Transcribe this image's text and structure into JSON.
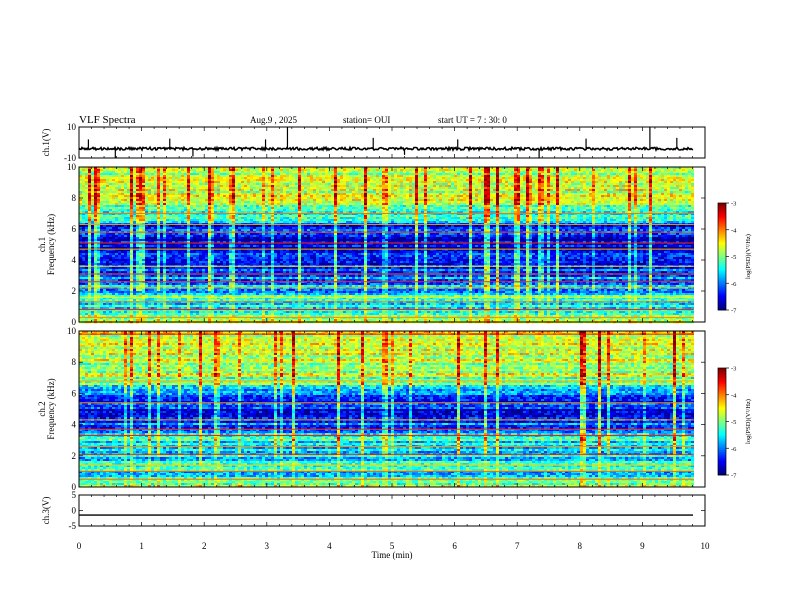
{
  "header": {
    "title": "VLF Spectra",
    "date": "Aug.9  , 2025",
    "station": "station= OUI",
    "start": "start  UT  =   7 : 30: 0"
  },
  "chart_data": [
    {
      "type": "line",
      "name": "ch1-waveform",
      "ylabel": "ch.1(V)",
      "ylim": [
        -10,
        10
      ],
      "yticks": [
        "10",
        "-10"
      ],
      "baseline": -4,
      "spikes": [
        {
          "t": 0.15,
          "v": 2
        },
        {
          "t": 0.58,
          "v": -10
        },
        {
          "t": 1.45,
          "v": 2.5
        },
        {
          "t": 1.82,
          "v": -9
        },
        {
          "t": 2.98,
          "v": 2
        },
        {
          "t": 3.33,
          "v": 10
        },
        {
          "t": 4.7,
          "v": 3
        },
        {
          "t": 5.2,
          "v": -8
        },
        {
          "t": 6.05,
          "v": 2
        },
        {
          "t": 7.35,
          "v": -10
        },
        {
          "t": 8.1,
          "v": 2.5
        },
        {
          "t": 9.12,
          "v": 10
        },
        {
          "t": 9.55,
          "v": 3
        }
      ],
      "data_end_min": 9.82
    },
    {
      "type": "heatmap",
      "name": "ch1-spectrogram",
      "ylabel": "ch.1\nFrequency  (kHz)",
      "ylim": [
        0,
        10
      ],
      "yticks": [
        "0",
        "2",
        "4",
        "6",
        "8",
        "10"
      ],
      "seed": 11,
      "band_profile": [
        {
          "f": 0.0,
          "level": -5.0
        },
        {
          "f": 0.5,
          "level": -5.2
        },
        {
          "f": 1.0,
          "level": -5.6
        },
        {
          "f": 1.5,
          "level": -5.3
        },
        {
          "f": 2.0,
          "level": -5.9
        },
        {
          "f": 2.5,
          "level": -5.7
        },
        {
          "f": 3.0,
          "level": -6.2
        },
        {
          "f": 3.5,
          "level": -6.5
        },
        {
          "f": 4.0,
          "level": -6.6
        },
        {
          "f": 4.5,
          "level": -6.7
        },
        {
          "f": 5.0,
          "level": -6.8
        },
        {
          "f": 5.5,
          "level": -6.6
        },
        {
          "f": 6.0,
          "level": -6.5
        },
        {
          "f": 6.5,
          "level": -5.8
        },
        {
          "f": 7.0,
          "level": -5.1
        },
        {
          "f": 7.5,
          "level": -4.9
        },
        {
          "f": 8.0,
          "level": -4.8
        },
        {
          "f": 8.5,
          "level": -4.7
        },
        {
          "f": 9.0,
          "level": -4.7
        },
        {
          "f": 9.5,
          "level": -4.8
        },
        {
          "f": 10.0,
          "level": -4.9
        }
      ],
      "tones_khz": [
        0.3,
        0.8,
        1.3,
        1.6,
        2.2,
        2.6,
        3.1,
        3.6,
        4.7,
        5.1,
        5.8,
        6.3,
        7.0
      ],
      "data_end_min": 9.82,
      "colorbar": {
        "label": "log(PSD)(V²/Hz)",
        "ticks": [
          "-3",
          "-4",
          "-5",
          "-6",
          "-7"
        ],
        "range": [
          -7,
          -3
        ]
      }
    },
    {
      "type": "heatmap",
      "name": "ch2-spectrogram",
      "ylabel": "ch.2\nFrequency  (kHz)",
      "ylim": [
        0,
        10
      ],
      "yticks": [
        "0",
        "2",
        "4",
        "6",
        "8",
        "10"
      ],
      "seed": 29,
      "band_profile": [
        {
          "f": 0.0,
          "level": -5.0
        },
        {
          "f": 0.5,
          "level": -5.3
        },
        {
          "f": 1.0,
          "level": -5.5
        },
        {
          "f": 1.5,
          "level": -5.4
        },
        {
          "f": 2.0,
          "level": -5.6
        },
        {
          "f": 2.5,
          "level": -5.5
        },
        {
          "f": 3.0,
          "level": -5.4
        },
        {
          "f": 3.5,
          "level": -5.8
        },
        {
          "f": 4.0,
          "level": -6.2
        },
        {
          "f": 4.5,
          "level": -6.6
        },
        {
          "f": 5.0,
          "level": -6.5
        },
        {
          "f": 5.5,
          "level": -6.3
        },
        {
          "f": 6.0,
          "level": -6.0
        },
        {
          "f": 6.5,
          "level": -5.2
        },
        {
          "f": 7.0,
          "level": -4.9
        },
        {
          "f": 7.5,
          "level": -4.8
        },
        {
          "f": 8.0,
          "level": -4.7
        },
        {
          "f": 8.5,
          "level": -4.7
        },
        {
          "f": 9.0,
          "level": -4.6
        },
        {
          "f": 9.5,
          "level": -4.6
        },
        {
          "f": 10.0,
          "level": -4.7
        }
      ],
      "tones_khz": [
        0.5,
        1.0,
        1.4,
        2.1,
        2.6,
        3.3,
        3.7,
        4.3,
        5.4,
        6.8,
        9.8
      ],
      "data_end_min": 9.82,
      "colorbar": {
        "label": "log(PSD)(V²/Hz)",
        "ticks": [
          "-3",
          "-4",
          "-5",
          "-6",
          "-7"
        ],
        "range": [
          -7,
          -3
        ]
      }
    },
    {
      "type": "line",
      "name": "ch3-waveform",
      "ylabel": "ch.3(V)",
      "ylim": [
        -5,
        5
      ],
      "yticks": [
        "5",
        "0",
        "-5"
      ],
      "baseline": -1.5,
      "spikes": [],
      "data_end_min": 9.82
    }
  ],
  "xaxis": {
    "label": "Time  (min)",
    "xlim": [
      0,
      10
    ],
    "ticks": [
      "0",
      "1",
      "2",
      "3",
      "4",
      "5",
      "6",
      "7",
      "8",
      "9",
      "10"
    ]
  }
}
